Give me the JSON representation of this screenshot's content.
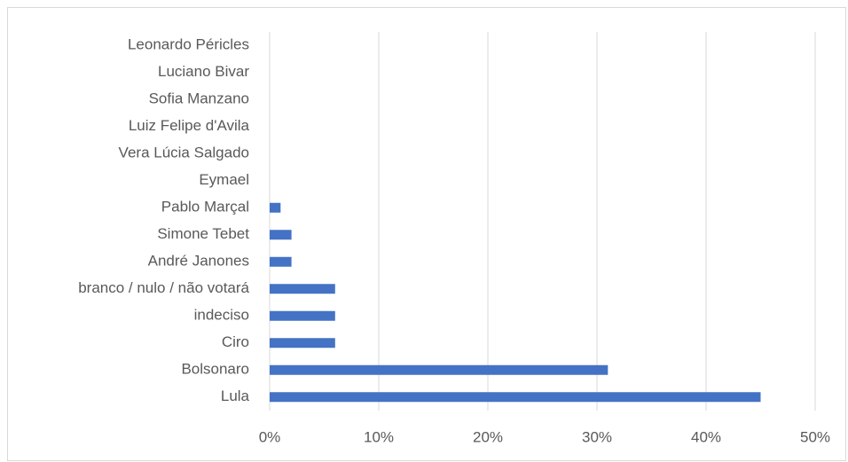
{
  "chart_data": {
    "type": "bar",
    "orientation": "horizontal",
    "categories": [
      "Lula",
      "Bolsonaro",
      "Ciro",
      "indeciso",
      "branco / nulo / não votará",
      "André Janones",
      "Simone Tebet",
      "Pablo Marçal",
      "Eymael",
      "Vera Lúcia Salgado",
      "Luiz Felipe d'Avila",
      "Sofia Manzano",
      "Luciano Bivar",
      "Leonardo Péricles"
    ],
    "values": [
      45,
      31,
      6,
      6,
      6,
      2,
      2,
      1,
      0,
      0,
      0,
      0,
      0,
      0
    ],
    "color": "#4472c4",
    "xlim": [
      0,
      50
    ],
    "xticks": [
      {
        "value": 0,
        "label": "0%"
      },
      {
        "value": 10,
        "label": "10%"
      },
      {
        "value": 20,
        "label": "20%"
      },
      {
        "value": 30,
        "label": "30%"
      },
      {
        "value": 40,
        "label": "40%"
      },
      {
        "value": 50,
        "label": "50%"
      }
    ],
    "grid": true
  }
}
